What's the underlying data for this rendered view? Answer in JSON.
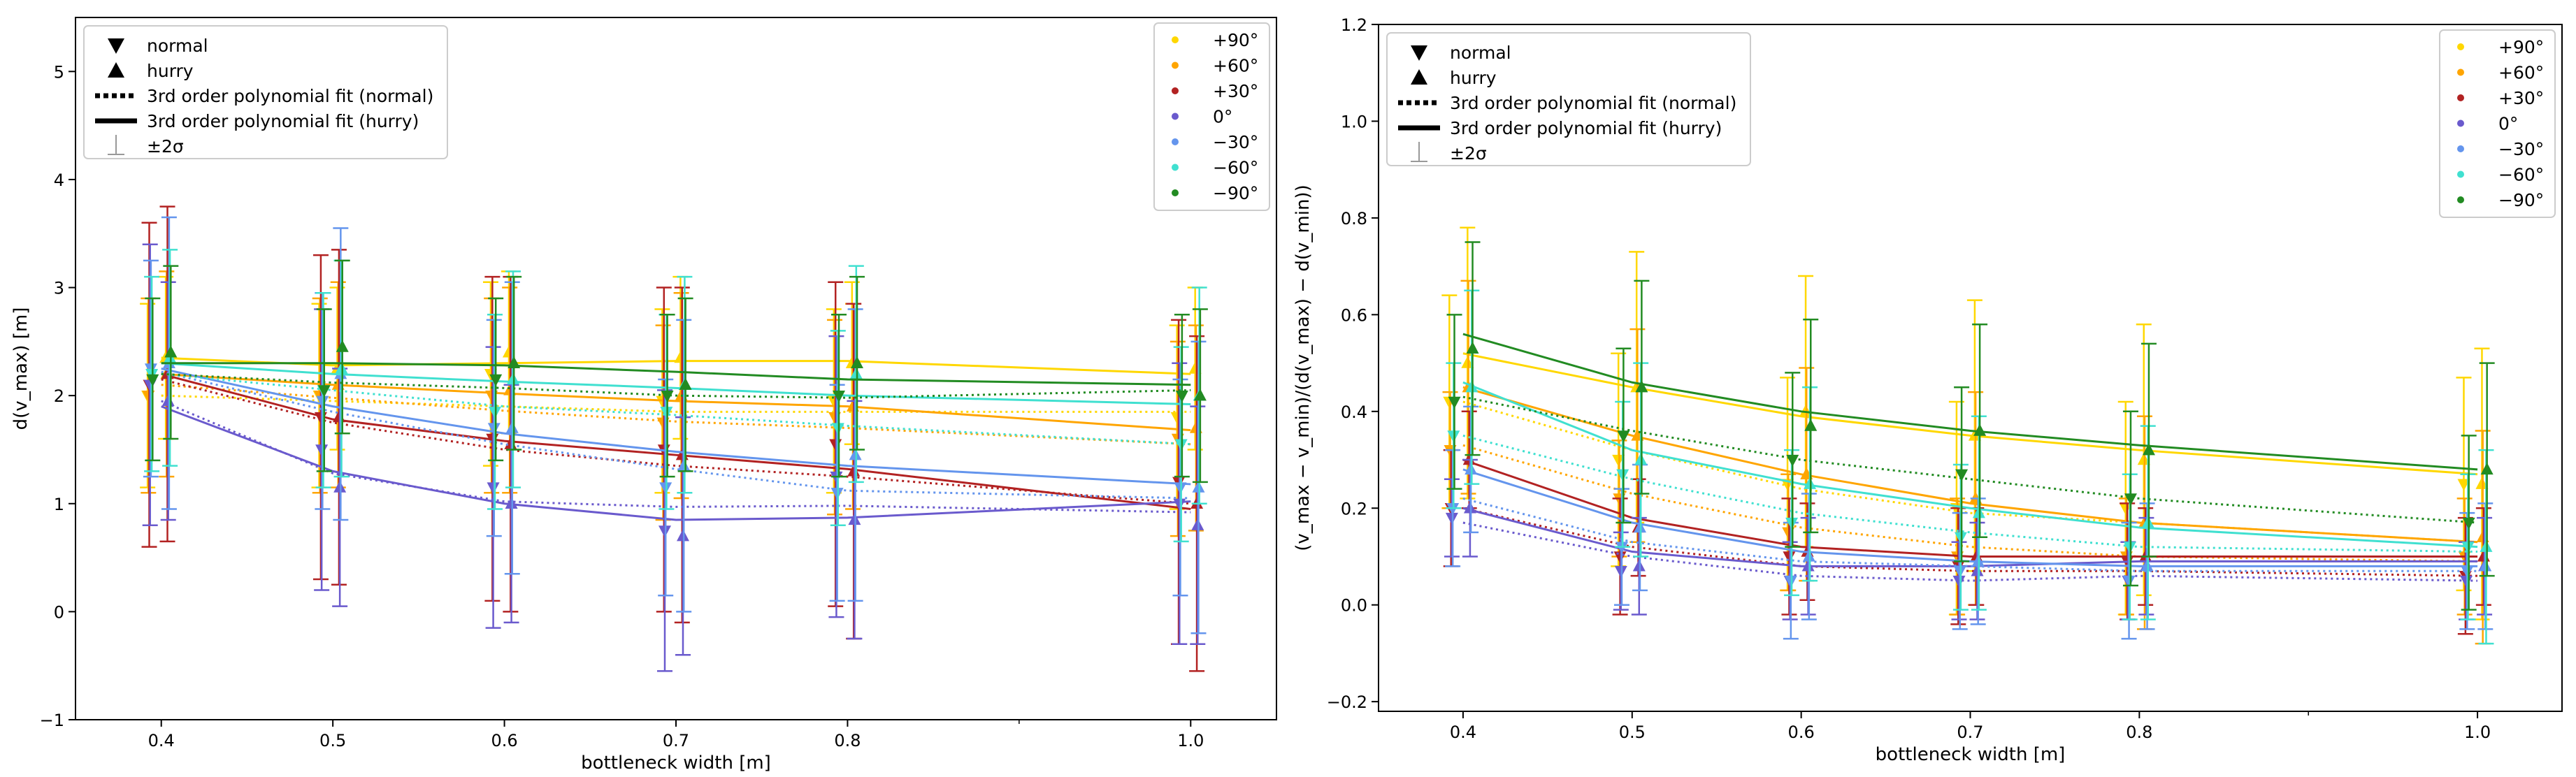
{
  "chart_data": [
    {
      "type": "line",
      "panel": "left",
      "title": "",
      "xlabel": "bottleneck width [m]",
      "ylabel": "d(v_max) [m]",
      "ylabel_parts": {
        "pre": "d(",
        "italic": "v",
        "sub": "max",
        "post": ") [m]"
      },
      "xlim": [
        0.35,
        1.05
      ],
      "ylim": [
        -1,
        5.5
      ],
      "xticks": [
        0.4,
        0.5,
        0.6,
        0.7,
        0.8,
        1.0
      ],
      "xtick_labels": [
        "0.4",
        "0.5",
        "0.6",
        "0.7",
        "0.8",
        "1.0"
      ],
      "yticks": [
        -1,
        0,
        1,
        2,
        3,
        4,
        5
      ],
      "ytick_labels": [
        "−1",
        "0",
        "1",
        "2",
        "3",
        "4",
        "5"
      ],
      "x": [
        0.4,
        0.5,
        0.6,
        0.7,
        0.8,
        1.0
      ],
      "series": [
        {
          "name": "+90°",
          "color": "#FFD700",
          "normal": [
            2.0,
            2.0,
            2.2,
            1.95,
            1.95,
            1.8
          ],
          "hurry": [
            2.35,
            2.25,
            2.4,
            2.35,
            2.3,
            2.25
          ],
          "fit_normal": [
            2.0,
            1.95,
            1.9,
            1.85,
            1.85,
            1.85
          ],
          "fit_hurry": [
            2.35,
            2.28,
            2.3,
            2.32,
            2.32,
            2.2
          ],
          "sd_normal": 0.85,
          "sd_hurry": 0.75
        },
        {
          "name": "+60°",
          "color": "#FFA500",
          "normal": [
            2.0,
            2.0,
            2.0,
            1.75,
            1.8,
            1.6
          ],
          "hurry": [
            2.2,
            2.1,
            2.05,
            2.0,
            1.9,
            1.7
          ],
          "fit_normal": [
            2.1,
            1.98,
            1.86,
            1.76,
            1.7,
            1.55
          ],
          "fit_hurry": [
            2.2,
            2.1,
            2.02,
            1.95,
            1.9,
            1.68
          ],
          "sd_normal": 0.9,
          "sd_hurry": 0.95
        },
        {
          "name": "+30°",
          "color": "#B22222",
          "normal": [
            2.1,
            1.8,
            1.6,
            1.5,
            1.55,
            1.2
          ],
          "hurry": [
            2.2,
            1.8,
            1.55,
            1.45,
            1.3,
            1.0
          ],
          "fit_normal": [
            2.15,
            1.75,
            1.5,
            1.35,
            1.25,
            1.0
          ],
          "fit_hurry": [
            2.2,
            1.78,
            1.58,
            1.45,
            1.32,
            0.95
          ],
          "sd_normal": 1.5,
          "sd_hurry": 1.55
        },
        {
          "name": "0°",
          "color": "#6A5ACD",
          "normal": [
            2.1,
            1.5,
            1.15,
            0.75,
            1.25,
            1.0
          ],
          "hurry": [
            1.95,
            1.15,
            1.0,
            0.7,
            0.85,
            0.8
          ],
          "fit_normal": [
            1.95,
            1.28,
            1.02,
            0.97,
            0.98,
            0.92
          ],
          "fit_hurry": [
            1.9,
            1.3,
            1.0,
            0.85,
            0.87,
            1.02
          ],
          "sd_normal": 1.3,
          "sd_hurry": 1.1
        },
        {
          "name": "−30°",
          "color": "#6495ED",
          "normal": [
            2.25,
            1.95,
            1.7,
            1.15,
            1.1,
            1.15
          ],
          "hurry": [
            2.3,
            2.2,
            1.7,
            1.35,
            1.45,
            1.15
          ],
          "fit_normal": [
            2.22,
            1.85,
            1.55,
            1.32,
            1.12,
            1.05
          ],
          "fit_hurry": [
            2.25,
            1.9,
            1.65,
            1.48,
            1.35,
            1.18
          ],
          "sd_normal": 1.0,
          "sd_hurry": 1.35
        },
        {
          "name": "−60°",
          "color": "#40E0D0",
          "normal": [
            2.2,
            2.05,
            1.85,
            1.85,
            1.7,
            1.55
          ],
          "hurry": [
            2.35,
            2.25,
            2.15,
            2.1,
            2.2,
            2.0
          ],
          "fit_normal": [
            2.2,
            2.05,
            1.9,
            1.82,
            1.72,
            1.55
          ],
          "fit_hurry": [
            2.3,
            2.2,
            2.13,
            2.07,
            2.0,
            1.92
          ],
          "sd_normal": 0.9,
          "sd_hurry": 1.0
        },
        {
          "name": "−90°",
          "color": "#228B22",
          "normal": [
            2.15,
            2.05,
            2.15,
            2.0,
            2.0,
            2.0
          ],
          "hurry": [
            2.4,
            2.45,
            2.3,
            2.1,
            2.3,
            2.0
          ],
          "fit_normal": [
            2.2,
            2.12,
            2.07,
            2.0,
            1.98,
            2.05
          ],
          "fit_hurry": [
            2.3,
            2.3,
            2.28,
            2.22,
            2.15,
            2.1
          ],
          "sd_normal": 0.75,
          "sd_hurry": 0.8
        }
      ],
      "legend_markers": [
        {
          "symbol": "▼",
          "label": "normal"
        },
        {
          "symbol": "▲",
          "label": "hurry"
        },
        {
          "symbol": "dotted",
          "label": "3rd order polynomial fit (normal)"
        },
        {
          "symbol": "solid",
          "label": "3rd order polynomial fit (hurry)"
        },
        {
          "symbol": "errorbar",
          "label": "±2σ"
        }
      ],
      "legend_markers_position": "upper-left",
      "legend_series_position": "upper-right"
    },
    {
      "type": "line",
      "panel": "right",
      "title": "",
      "xlabel": "bottleneck width [m]",
      "ylabel": "(v_max − v_min)/(d(v_max) − d(v_min))",
      "ylabel_parts": {
        "text": "(v_max − v_min)/(d(v_max) − d(v_min))"
      },
      "xlim": [
        0.35,
        1.05
      ],
      "ylim": [
        -0.22,
        1.2
      ],
      "xticks": [
        0.4,
        0.5,
        0.6,
        0.7,
        0.8,
        1.0
      ],
      "xtick_labels": [
        "0.4",
        "0.5",
        "0.6",
        "0.7",
        "0.8",
        "1.0"
      ],
      "yticks": [
        -0.2,
        0.0,
        0.2,
        0.4,
        0.6,
        0.8,
        1.0,
        1.2
      ],
      "ytick_labels": [
        "−0.2",
        "0.0",
        "0.2",
        "0.4",
        "0.6",
        "0.8",
        "1.0",
        "1.2"
      ],
      "x": [
        0.4,
        0.5,
        0.6,
        0.7,
        0.8,
        1.0
      ],
      "series": [
        {
          "name": "+90°",
          "color": "#FFD700",
          "normal": [
            0.42,
            0.3,
            0.25,
            0.2,
            0.2,
            0.25
          ],
          "hurry": [
            0.5,
            0.45,
            0.4,
            0.35,
            0.3,
            0.25
          ],
          "fit_normal": [
            0.42,
            0.32,
            0.24,
            0.19,
            0.17,
            0.13
          ],
          "fit_hurry": [
            0.52,
            0.45,
            0.39,
            0.35,
            0.32,
            0.27
          ],
          "sd_normal": 0.22,
          "sd_hurry": 0.28
        },
        {
          "name": "+60°",
          "color": "#FFA500",
          "normal": [
            0.32,
            0.22,
            0.15,
            0.1,
            0.1,
            0.1
          ],
          "hurry": [
            0.45,
            0.35,
            0.27,
            0.22,
            0.17,
            0.14
          ],
          "fit_normal": [
            0.33,
            0.23,
            0.16,
            0.12,
            0.1,
            0.09
          ],
          "fit_hurry": [
            0.45,
            0.35,
            0.27,
            0.21,
            0.17,
            0.13
          ],
          "sd_normal": 0.12,
          "sd_hurry": 0.22
        },
        {
          "name": "+30°",
          "color": "#B22222",
          "normal": [
            0.2,
            0.1,
            0.1,
            0.08,
            0.09,
            0.06
          ],
          "hurry": [
            0.3,
            0.16,
            0.11,
            0.1,
            0.1,
            0.1
          ],
          "fit_normal": [
            0.2,
            0.12,
            0.08,
            0.07,
            0.07,
            0.06
          ],
          "fit_hurry": [
            0.3,
            0.18,
            0.12,
            0.1,
            0.1,
            0.1
          ],
          "sd_normal": 0.12,
          "sd_hurry": 0.1
        },
        {
          "name": "0°",
          "color": "#6A5ACD",
          "normal": [
            0.18,
            0.07,
            0.05,
            0.05,
            0.05,
            0.05
          ],
          "hurry": [
            0.2,
            0.08,
            0.08,
            0.07,
            0.08,
            0.08
          ],
          "fit_normal": [
            0.17,
            0.1,
            0.06,
            0.05,
            0.06,
            0.05
          ],
          "fit_hurry": [
            0.2,
            0.11,
            0.08,
            0.08,
            0.09,
            0.09
          ],
          "sd_normal": 0.08,
          "sd_hurry": 0.1
        },
        {
          "name": "−30°",
          "color": "#6495ED",
          "normal": [
            0.2,
            0.12,
            0.05,
            0.07,
            0.05,
            0.07
          ],
          "hurry": [
            0.28,
            0.16,
            0.1,
            0.09,
            0.08,
            0.08
          ],
          "fit_normal": [
            0.22,
            0.13,
            0.09,
            0.08,
            0.07,
            0.07
          ],
          "fit_hurry": [
            0.28,
            0.17,
            0.11,
            0.09,
            0.08,
            0.08
          ],
          "sd_normal": 0.12,
          "sd_hurry": 0.13
        },
        {
          "name": "−60°",
          "color": "#40E0D0",
          "normal": [
            0.35,
            0.27,
            0.17,
            0.14,
            0.12,
            0.12
          ],
          "hurry": [
            0.45,
            0.3,
            0.25,
            0.19,
            0.17,
            0.12
          ],
          "fit_normal": [
            0.35,
            0.26,
            0.19,
            0.15,
            0.12,
            0.11
          ],
          "fit_hurry": [
            0.46,
            0.32,
            0.25,
            0.2,
            0.16,
            0.12
          ],
          "sd_normal": 0.15,
          "sd_hurry": 0.2
        },
        {
          "name": "−90°",
          "color": "#228B22",
          "normal": [
            0.42,
            0.35,
            0.3,
            0.27,
            0.22,
            0.17
          ],
          "hurry": [
            0.53,
            0.45,
            0.37,
            0.36,
            0.32,
            0.28
          ],
          "fit_normal": [
            0.43,
            0.36,
            0.3,
            0.26,
            0.22,
            0.17
          ],
          "fit_hurry": [
            0.56,
            0.46,
            0.4,
            0.36,
            0.33,
            0.28
          ],
          "sd_normal": 0.18,
          "sd_hurry": 0.22
        }
      ],
      "legend_markers": [
        {
          "symbol": "▼",
          "label": "normal"
        },
        {
          "symbol": "▲",
          "label": "hurry"
        },
        {
          "symbol": "dotted",
          "label": "3rd order polynomial fit (normal)"
        },
        {
          "symbol": "solid",
          "label": "3rd order polynomial fit (hurry)"
        },
        {
          "symbol": "errorbar",
          "label": "±2σ"
        }
      ],
      "legend_markers_position": "upper-left",
      "legend_series_position": "upper-right"
    }
  ]
}
